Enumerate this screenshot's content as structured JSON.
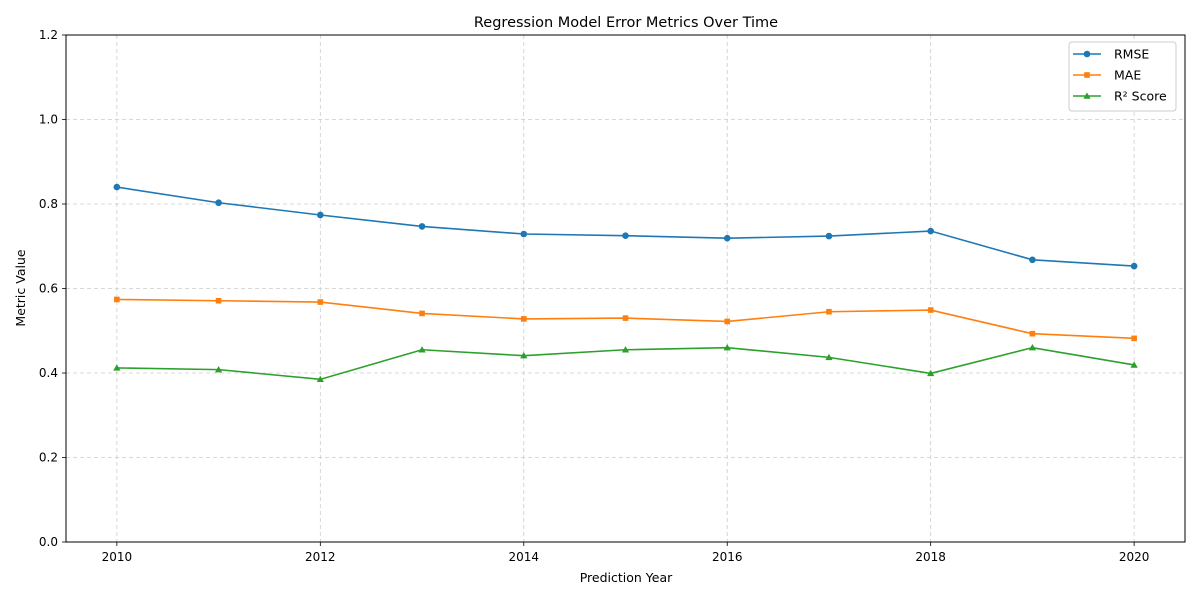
{
  "chart_data": {
    "type": "line",
    "title": "Regression Model Error Metrics Over Time",
    "xlabel": "Prediction Year",
    "ylabel": "Metric Value",
    "xlim": [
      2009.5,
      2020.5
    ],
    "ylim": [
      0.0,
      1.2
    ],
    "x_ticks": [
      2010,
      2012,
      2014,
      2016,
      2018,
      2020
    ],
    "x_tick_labels": [
      "2010",
      "2012",
      "2014",
      "2016",
      "2018",
      "2020"
    ],
    "y_ticks": [
      0.0,
      0.2,
      0.4,
      0.6,
      0.8,
      1.0,
      1.2
    ],
    "y_tick_labels": [
      "0.0",
      "0.2",
      "0.4",
      "0.6",
      "0.8",
      "1.0",
      "1.2"
    ],
    "grid": true,
    "legend_position": "top-right",
    "x": [
      2010,
      2011,
      2012,
      2013,
      2014,
      2015,
      2016,
      2017,
      2018,
      2019,
      2020
    ],
    "series": [
      {
        "name": "RMSE",
        "color": "#1f77b4",
        "marker": "circle",
        "values": [
          0.84,
          0.803,
          0.774,
          0.747,
          0.729,
          0.725,
          0.719,
          0.724,
          0.736,
          0.668,
          0.653
        ]
      },
      {
        "name": "MAE",
        "color": "#ff7f0e",
        "marker": "square",
        "values": [
          0.574,
          0.571,
          0.568,
          0.541,
          0.528,
          0.53,
          0.522,
          0.545,
          0.549,
          0.493,
          0.482
        ]
      },
      {
        "name": "R² Score",
        "color": "#2ca02c",
        "marker": "triangle",
        "values": [
          0.412,
          0.408,
          0.385,
          0.455,
          0.441,
          0.455,
          0.46,
          0.437,
          0.399,
          0.46,
          0.419
        ]
      }
    ]
  }
}
